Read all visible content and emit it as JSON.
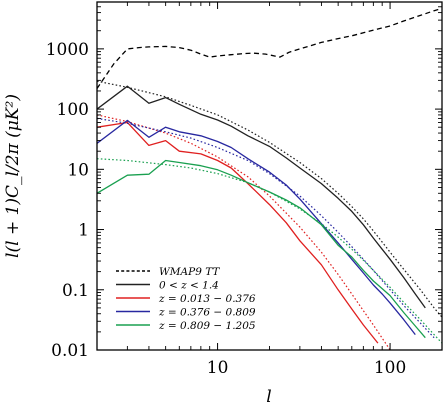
{
  "chart_data": {
    "type": "line",
    "xlabel": "l",
    "ylabel": "l(l + 1)C_l/2π (μK²)",
    "xscale": "log",
    "yscale": "log",
    "xlim": [
      2,
      200
    ],
    "ylim": [
      0.01,
      6000
    ],
    "xticks": [
      {
        "value": 10,
        "label": "10"
      },
      {
        "value": 100,
        "label": "100"
      }
    ],
    "yticks": [
      {
        "value": 0.01,
        "label": "0.01"
      },
      {
        "value": 0.1,
        "label": "0.1"
      },
      {
        "value": 1,
        "label": "1"
      },
      {
        "value": 10,
        "label": "10"
      },
      {
        "value": 100,
        "label": "100"
      },
      {
        "value": 1000,
        "label": "1000"
      }
    ],
    "legend_position": "bottom-left",
    "grid": false,
    "series": [
      {
        "name": "WMAP9 TT",
        "color": "#000000",
        "dash": "dashed",
        "points": [
          [
            2,
            220
          ],
          [
            2.5,
            560
          ],
          [
            3,
            1000
          ],
          [
            3.5,
            1050
          ],
          [
            4,
            1080
          ],
          [
            5,
            1100
          ],
          [
            6,
            1050
          ],
          [
            7,
            950
          ],
          [
            8,
            820
          ],
          [
            9,
            730
          ],
          [
            10,
            760
          ],
          [
            12,
            800
          ],
          [
            14,
            830
          ],
          [
            16,
            850
          ],
          [
            19,
            820
          ],
          [
            23,
            730
          ],
          [
            26,
            880
          ],
          [
            30,
            1000
          ],
          [
            40,
            1280
          ],
          [
            50,
            1480
          ],
          [
            60,
            1650
          ],
          [
            70,
            1850
          ],
          [
            80,
            2050
          ],
          [
            100,
            2400
          ],
          [
            120,
            2900
          ],
          [
            150,
            3600
          ],
          [
            180,
            4300
          ],
          [
            200,
            4700
          ]
        ]
      },
      {
        "name": "0 < z < 1.4",
        "color": "#222222",
        "dash": "solid",
        "points": [
          [
            2,
            100
          ],
          [
            3,
            240
          ],
          [
            4,
            125
          ],
          [
            5,
            155
          ],
          [
            6,
            120
          ],
          [
            8,
            82
          ],
          [
            10,
            66
          ],
          [
            12,
            52
          ],
          [
            15,
            36
          ],
          [
            20,
            24
          ],
          [
            25,
            15.5
          ],
          [
            30,
            10.5
          ],
          [
            40,
            5.8
          ],
          [
            50,
            3.3
          ],
          [
            60,
            2
          ],
          [
            70,
            1.2
          ],
          [
            80,
            0.72
          ],
          [
            90,
            0.47
          ],
          [
            100,
            0.32
          ],
          [
            120,
            0.16
          ],
          [
            140,
            0.085
          ],
          [
            160,
            0.05
          ]
        ]
      },
      {
        "name": "0 < z < 1.4 model",
        "color": "#222222",
        "dash": "dotted",
        "points": [
          [
            2,
            290
          ],
          [
            3,
            230
          ],
          [
            5,
            160
          ],
          [
            7,
            115
          ],
          [
            10,
            80
          ],
          [
            15,
            45
          ],
          [
            20,
            28
          ],
          [
            30,
            13
          ],
          [
            40,
            7
          ],
          [
            50,
            4
          ],
          [
            60,
            2.4
          ],
          [
            70,
            1.5
          ],
          [
            80,
            0.95
          ],
          [
            100,
            0.42
          ],
          [
            120,
            0.22
          ],
          [
            150,
            0.1
          ],
          [
            180,
            0.05
          ],
          [
            200,
            0.035
          ]
        ]
      },
      {
        "name": "z = 0.013 − 0.376",
        "color": "#e02020",
        "dash": "solid",
        "points": [
          [
            2,
            50
          ],
          [
            3,
            60
          ],
          [
            4,
            25
          ],
          [
            5,
            30
          ],
          [
            6,
            20
          ],
          [
            8,
            18
          ],
          [
            10,
            14
          ],
          [
            12,
            10.5
          ],
          [
            15,
            5.8
          ],
          [
            20,
            2.6
          ],
          [
            25,
            1.3
          ],
          [
            30,
            0.65
          ],
          [
            40,
            0.26
          ],
          [
            50,
            0.1
          ],
          [
            60,
            0.048
          ],
          [
            70,
            0.026
          ],
          [
            85,
            0.013
          ]
        ]
      },
      {
        "name": "z = 0.013 − 0.376 model",
        "color": "#e02020",
        "dash": "dotted",
        "points": [
          [
            2,
            80
          ],
          [
            3,
            62
          ],
          [
            5,
            40
          ],
          [
            7,
            27
          ],
          [
            10,
            16
          ],
          [
            15,
            7.5
          ],
          [
            20,
            3.6
          ],
          [
            30,
            1.1
          ],
          [
            40,
            0.42
          ],
          [
            50,
            0.18
          ],
          [
            60,
            0.085
          ],
          [
            70,
            0.045
          ],
          [
            80,
            0.026
          ],
          [
            100,
            0.01
          ]
        ]
      },
      {
        "name": "z = 0.376 − 0.809",
        "color": "#2828a0",
        "dash": "solid",
        "points": [
          [
            2,
            27
          ],
          [
            3,
            65
          ],
          [
            4,
            34
          ],
          [
            5,
            50
          ],
          [
            6,
            42
          ],
          [
            8,
            36
          ],
          [
            10,
            29
          ],
          [
            12,
            23
          ],
          [
            15,
            15
          ],
          [
            20,
            9
          ],
          [
            25,
            5.5
          ],
          [
            30,
            3.2
          ],
          [
            40,
            1.25
          ],
          [
            50,
            0.6
          ],
          [
            60,
            0.32
          ],
          [
            70,
            0.19
          ],
          [
            80,
            0.12
          ],
          [
            90,
            0.085
          ],
          [
            100,
            0.06
          ],
          [
            120,
            0.032
          ],
          [
            140,
            0.018
          ]
        ]
      },
      {
        "name": "z = 0.376 − 0.809 model",
        "color": "#2828a0",
        "dash": "dotted",
        "points": [
          [
            2,
            70
          ],
          [
            3,
            58
          ],
          [
            5,
            42
          ],
          [
            7,
            33
          ],
          [
            10,
            23
          ],
          [
            15,
            14
          ],
          [
            20,
            8.5
          ],
          [
            30,
            3.6
          ],
          [
            40,
            1.7
          ],
          [
            50,
            0.9
          ],
          [
            60,
            0.52
          ],
          [
            70,
            0.32
          ],
          [
            80,
            0.21
          ],
          [
            100,
            0.1
          ],
          [
            120,
            0.055
          ],
          [
            150,
            0.028
          ],
          [
            180,
            0.016
          ]
        ]
      },
      {
        "name": "z = 0.809 − 1.205",
        "color": "#1aa050",
        "dash": "solid",
        "points": [
          [
            2,
            4
          ],
          [
            3,
            8
          ],
          [
            4,
            8.3
          ],
          [
            5,
            14
          ],
          [
            6,
            13
          ],
          [
            8,
            11.5
          ],
          [
            10,
            9.8
          ],
          [
            12,
            8
          ],
          [
            15,
            6
          ],
          [
            20,
            4.2
          ],
          [
            25,
            3.1
          ],
          [
            30,
            2.3
          ],
          [
            40,
            1.2
          ],
          [
            50,
            0.55
          ],
          [
            60,
            0.35
          ],
          [
            70,
            0.21
          ],
          [
            80,
            0.14
          ],
          [
            100,
            0.08
          ],
          [
            120,
            0.042
          ],
          [
            140,
            0.025
          ],
          [
            160,
            0.016
          ]
        ]
      },
      {
        "name": "z = 0.809 − 1.205 model",
        "color": "#1aa050",
        "dash": "dotted",
        "points": [
          [
            2,
            15
          ],
          [
            3,
            14
          ],
          [
            5,
            12
          ],
          [
            7,
            10.5
          ],
          [
            10,
            8.5
          ],
          [
            15,
            6
          ],
          [
            20,
            4.2
          ],
          [
            30,
            2.2
          ],
          [
            40,
            1.25
          ],
          [
            50,
            0.75
          ],
          [
            60,
            0.47
          ],
          [
            70,
            0.31
          ],
          [
            80,
            0.21
          ],
          [
            100,
            0.11
          ],
          [
            120,
            0.062
          ],
          [
            150,
            0.032
          ],
          [
            180,
            0.018
          ],
          [
            200,
            0.013
          ]
        ]
      }
    ],
    "legend": [
      {
        "label": "WMAP9 TT",
        "color": "#000000",
        "dash": "dashed"
      },
      {
        "label": "0 < z < 1.4",
        "color": "#222222",
        "dash": "solid"
      },
      {
        "label": "z = 0.013 − 0.376",
        "color": "#e02020",
        "dash": "solid"
      },
      {
        "label": "z = 0.376 − 0.809",
        "color": "#2828a0",
        "dash": "solid"
      },
      {
        "label": "z = 0.809 − 1.205",
        "color": "#1aa050",
        "dash": "solid"
      }
    ]
  }
}
